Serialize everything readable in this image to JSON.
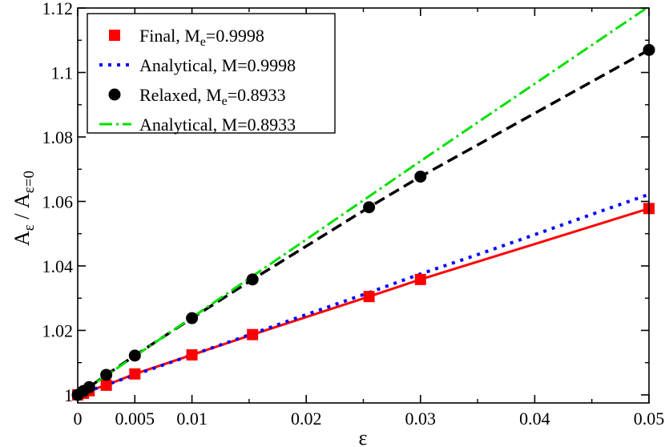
{
  "chart_data": {
    "type": "line",
    "xlabel": "ε",
    "ylabel": {
      "base": "A",
      "sub1": "ε",
      "mid": " / A",
      "sub2": "ε=0"
    },
    "xlim": [
      0,
      0.05
    ],
    "ylim": [
      0.9975,
      1.12
    ],
    "x_ticks": [
      0,
      0.005,
      0.01,
      0.02,
      0.03,
      0.04,
      0.05
    ],
    "x_tick_labels": [
      "0",
      "0.005",
      "0.01",
      "0.02",
      "0.03",
      "0.04",
      "0.05"
    ],
    "y_ticks": [
      1.0,
      1.02,
      1.04,
      1.06,
      1.08,
      1.1,
      1.12
    ],
    "y_tick_labels": [
      "1",
      "1.02",
      "1.04",
      "1.06",
      "1.08",
      "1.1",
      "1.12"
    ],
    "legend_position": "top-left",
    "series": [
      {
        "name": "final",
        "legend": {
          "pre": "Final, M",
          "sub": "e",
          "post": "=0.9998"
        },
        "style": "line-with-square-markers",
        "color": "#ff0000",
        "x": [
          0,
          0.0005,
          0.001,
          0.0025,
          0.005,
          0.01,
          0.0153,
          0.0255,
          0.03,
          0.05
        ],
        "y": [
          1.0,
          1.0005,
          1.0013,
          1.003,
          1.0065,
          1.0124,
          1.0187,
          1.0305,
          1.0358,
          1.0578
        ]
      },
      {
        "name": "analytical-m-09998",
        "legend": {
          "pre": "Analytical, M=0.9998",
          "sub": "",
          "post": ""
        },
        "style": "dotted",
        "color": "#0000ff",
        "x": [
          0,
          0.005,
          0.01,
          0.015,
          0.02,
          0.025,
          0.03,
          0.035,
          0.04,
          0.045,
          0.05
        ],
        "y": [
          1.0,
          1.0062,
          1.0124,
          1.0186,
          1.0249,
          1.0311,
          1.0375,
          1.0435,
          1.0497,
          1.056,
          1.0622
        ]
      },
      {
        "name": "relaxed",
        "legend": {
          "pre": "Relaxed, M",
          "sub": "e",
          "post": "=0.8933"
        },
        "style": "dashed-with-circle-markers",
        "color": "#000000",
        "x": [
          0,
          0.0005,
          0.001,
          0.0025,
          0.005,
          0.01,
          0.0153,
          0.0255,
          0.03,
          0.05
        ],
        "y": [
          1.0,
          1.0012,
          1.0024,
          1.0062,
          1.0122,
          1.0238,
          1.0358,
          1.0582,
          1.0677,
          1.107
        ]
      },
      {
        "name": "analytical-m-08933",
        "legend": {
          "pre": "Analytical, M=0.8933",
          "sub": "",
          "post": ""
        },
        "style": "dash-dot",
        "color": "#00e000",
        "x": [
          0,
          0.01,
          0.02,
          0.03,
          0.04,
          0.05
        ],
        "y": [
          1.0,
          1.024,
          1.0482,
          1.0725,
          1.0965,
          1.1205
        ]
      }
    ]
  }
}
